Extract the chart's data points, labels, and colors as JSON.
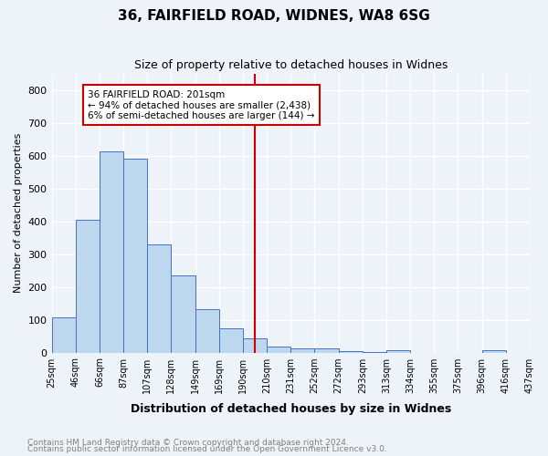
{
  "title1": "36, FAIRFIELD ROAD, WIDNES, WA8 6SG",
  "title2": "Size of property relative to detached houses in Widnes",
  "xlabel": "Distribution of detached houses by size in Widnes",
  "ylabel": "Number of detached properties",
  "footnote1": "Contains HM Land Registry data © Crown copyright and database right 2024.",
  "footnote2": "Contains public sector information licensed under the Open Government Licence v3.0.",
  "bin_labels": [
    "25sqm",
    "46sqm",
    "66sqm",
    "87sqm",
    "107sqm",
    "128sqm",
    "149sqm",
    "169sqm",
    "190sqm",
    "210sqm",
    "231sqm",
    "252sqm",
    "272sqm",
    "293sqm",
    "313sqm",
    "334sqm",
    "355sqm",
    "375sqm",
    "396sqm",
    "416sqm",
    "437sqm"
  ],
  "bar_values": [
    107,
    405,
    614,
    591,
    330,
    236,
    133,
    75,
    44,
    19,
    13,
    12,
    5,
    2,
    7,
    0,
    0,
    0,
    6,
    0
  ],
  "bar_color": "#bdd7ee",
  "bar_edge_color": "#4472c4",
  "background_color": "#eef3f9",
  "grid_color": "#ffffff",
  "vline_bin_index": 8.5,
  "annotation_title": "36 FAIRFIELD ROAD: 201sqm",
  "annotation_line1": "← 94% of detached houses are smaller (2,438)",
  "annotation_line2": "6% of semi-detached houses are larger (144) →",
  "annotation_box_color": "#cc0000",
  "ylim": [
    0,
    850
  ],
  "yticks": [
    0,
    100,
    200,
    300,
    400,
    500,
    600,
    700,
    800
  ]
}
